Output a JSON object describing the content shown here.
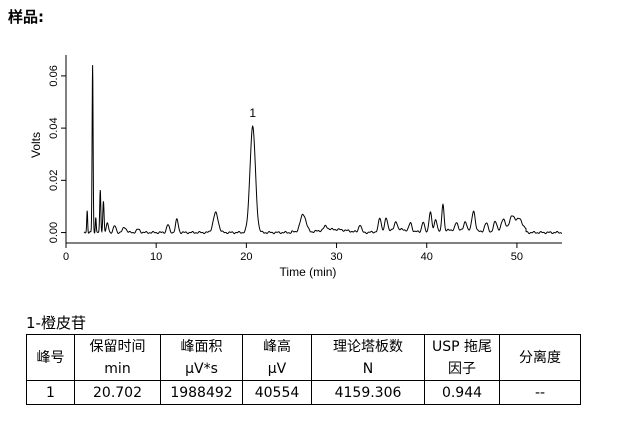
{
  "sample_label": "样品:",
  "chart_data": {
    "type": "line",
    "xlabel": "Time (min)",
    "ylabel": "Volts",
    "xlim": [
      0,
      55
    ],
    "ylim": [
      -0.004,
      0.068
    ],
    "x_ticks": [
      0,
      10,
      20,
      30,
      40,
      50
    ],
    "y_ticks": [
      0.0,
      0.02,
      0.04,
      0.06
    ],
    "y_tick_labels": [
      "0.00",
      "0.02",
      "0.04",
      "0.06"
    ],
    "grid": false,
    "baseline": 0.0,
    "peaks": [
      {
        "t": 2.35,
        "h": 0.0085,
        "w": 0.05
      },
      {
        "t": 2.95,
        "h": 0.064,
        "w": 0.055
      },
      {
        "t": 3.3,
        "h": 0.006,
        "w": 0.05
      },
      {
        "t": 3.8,
        "h": 0.016,
        "w": 0.06
      },
      {
        "t": 4.15,
        "h": 0.012,
        "w": 0.07
      },
      {
        "t": 4.6,
        "h": 0.0035,
        "w": 0.12
      },
      {
        "t": 5.4,
        "h": 0.0025,
        "w": 0.15
      },
      {
        "t": 6.5,
        "h": 0.002,
        "w": 0.2
      },
      {
        "t": 8.0,
        "h": 0.0012,
        "w": 0.2
      },
      {
        "t": 11.3,
        "h": 0.003,
        "w": 0.15
      },
      {
        "t": 12.3,
        "h": 0.005,
        "w": 0.15
      },
      {
        "t": 16.6,
        "h": 0.0075,
        "w": 0.28
      },
      {
        "t": 20.702,
        "h": 0.0405,
        "w": 0.3
      },
      {
        "t": 26.3,
        "h": 0.007,
        "w": 0.32
      },
      {
        "t": 28.8,
        "h": 0.0015,
        "w": 0.2
      },
      {
        "t": 32.6,
        "h": 0.003,
        "w": 0.15
      },
      {
        "t": 34.8,
        "h": 0.005,
        "w": 0.15
      },
      {
        "t": 35.5,
        "h": 0.0045,
        "w": 0.15
      },
      {
        "t": 36.6,
        "h": 0.003,
        "w": 0.15
      },
      {
        "t": 38.2,
        "h": 0.003,
        "w": 0.15
      },
      {
        "t": 39.6,
        "h": 0.004,
        "w": 0.15
      },
      {
        "t": 40.4,
        "h": 0.008,
        "w": 0.15
      },
      {
        "t": 41.0,
        "h": 0.005,
        "w": 0.15
      },
      {
        "t": 41.8,
        "h": 0.0105,
        "w": 0.12
      },
      {
        "t": 43.3,
        "h": 0.0025,
        "w": 0.15
      },
      {
        "t": 44.3,
        "h": 0.003,
        "w": 0.15
      },
      {
        "t": 45.2,
        "h": 0.0075,
        "w": 0.18
      },
      {
        "t": 46.6,
        "h": 0.0035,
        "w": 0.2
      },
      {
        "t": 47.6,
        "h": 0.004,
        "w": 0.2
      },
      {
        "t": 48.5,
        "h": 0.0045,
        "w": 0.25
      },
      {
        "t": 49.5,
        "h": 0.0055,
        "w": 0.3
      },
      {
        "t": 50.3,
        "h": 0.004,
        "w": 0.3
      }
    ],
    "annotations": [
      {
        "text": "1",
        "t": 20.702,
        "y": 0.0405
      }
    ]
  },
  "compound_title": "1-橙皮苷",
  "table": {
    "headers": [
      [
        "峰号"
      ],
      [
        "保留时间",
        "min"
      ],
      [
        "峰面积",
        "μV*s"
      ],
      [
        "峰高",
        "μV"
      ],
      [
        "理论塔板数",
        "N"
      ],
      [
        "USP 拖尾",
        "因子"
      ],
      [
        "分离度"
      ]
    ],
    "rows": [
      [
        "1",
        "20.702",
        "1988492",
        "40554",
        "4159.306",
        "0.944",
        "--"
      ]
    ]
  }
}
